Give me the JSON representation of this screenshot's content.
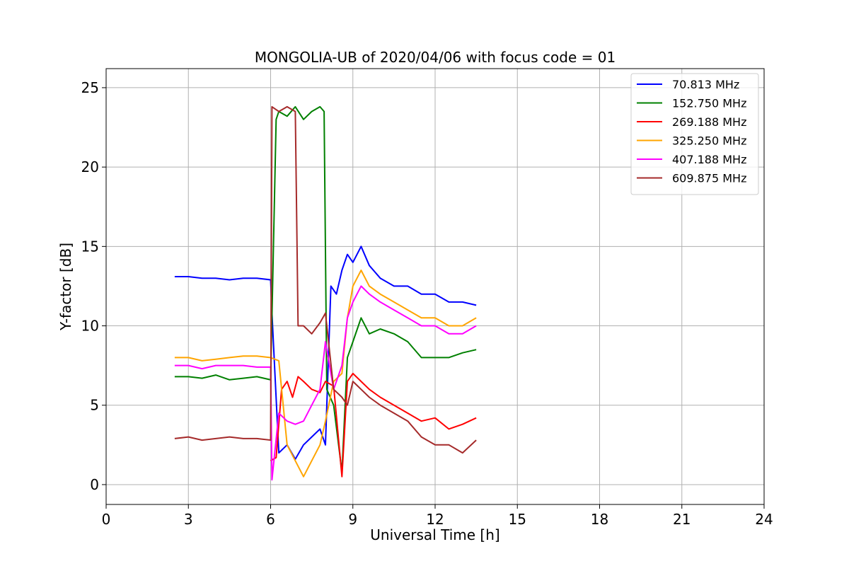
{
  "chart_data": {
    "type": "line",
    "title": "MONGOLIA-UB of 2020/04/06 with focus code = 01",
    "xlabel": "Universal Time [h]",
    "ylabel": "Y-factor [dB]",
    "xlim": [
      0,
      24
    ],
    "ylim": [
      -1.25,
      26.2
    ],
    "xticks": [
      "0",
      "3",
      "6",
      "9",
      "12",
      "15",
      "18",
      "21",
      "24"
    ],
    "yticks": [
      "0",
      "5",
      "10",
      "15",
      "20",
      "25"
    ],
    "grid": true,
    "legend_position": "top-right",
    "series": [
      {
        "name": "70.813 MHz",
        "color": "#0000ff",
        "x": [
          2.5,
          3.0,
          3.5,
          4.0,
          4.5,
          5.0,
          5.5,
          6.0,
          6.05,
          6.3,
          6.6,
          6.9,
          7.2,
          7.5,
          7.8,
          8.0,
          8.2,
          8.4,
          8.6,
          8.8,
          9.0,
          9.3,
          9.6,
          10.0,
          10.5,
          11.0,
          11.5,
          12.0,
          12.5,
          13.0,
          13.5
        ],
        "y": [
          13.1,
          13.1,
          13.0,
          13.0,
          12.9,
          13.0,
          13.0,
          12.9,
          10.8,
          2.0,
          2.5,
          1.6,
          2.5,
          3.0,
          3.5,
          2.5,
          12.5,
          12.0,
          13.5,
          14.5,
          14.0,
          15.0,
          13.8,
          13.0,
          12.5,
          12.5,
          12.0,
          12.0,
          11.5,
          11.5,
          11.3
        ]
      },
      {
        "name": "152.750 MHz",
        "color": "#008000",
        "x": [
          2.5,
          3.0,
          3.5,
          4.0,
          4.5,
          5.0,
          5.5,
          6.0,
          6.2,
          6.3,
          6.6,
          6.9,
          7.2,
          7.5,
          7.8,
          7.95,
          8.05,
          8.3,
          8.6,
          8.8,
          9.0,
          9.3,
          9.6,
          10.0,
          10.5,
          11.0,
          11.5,
          12.0,
          12.5,
          13.0,
          13.5
        ],
        "y": [
          6.8,
          6.8,
          6.7,
          6.9,
          6.6,
          6.7,
          6.8,
          6.6,
          23.0,
          23.5,
          23.2,
          23.8,
          23.0,
          23.5,
          23.8,
          23.5,
          6.0,
          5.0,
          0.8,
          8.0,
          9.0,
          10.5,
          9.5,
          9.8,
          9.5,
          9.0,
          8.0,
          8.0,
          8.0,
          8.3,
          8.5
        ]
      },
      {
        "name": "269.188 MHz",
        "color": "#ff0000",
        "x": [
          6.0,
          6.2,
          6.4,
          6.6,
          6.8,
          7.0,
          7.2,
          7.5,
          7.8,
          8.0,
          8.3,
          8.6,
          8.8,
          9.0,
          9.3,
          9.6,
          10.0,
          10.5,
          11.0,
          11.5,
          12.0,
          12.5,
          13.0,
          13.5
        ],
        "y": [
          1.5,
          1.7,
          6.0,
          6.5,
          5.5,
          6.8,
          6.5,
          6.0,
          5.8,
          6.5,
          6.2,
          0.5,
          6.5,
          7.0,
          6.5,
          6.0,
          5.5,
          5.0,
          4.5,
          4.0,
          4.2,
          3.5,
          3.8,
          4.2
        ]
      },
      {
        "name": "325.250 MHz",
        "color": "#ffa500",
        "x": [
          2.5,
          3.0,
          3.5,
          4.0,
          4.5,
          5.0,
          5.5,
          6.0,
          6.3,
          6.6,
          6.9,
          7.2,
          7.5,
          7.8,
          8.0,
          8.3,
          8.6,
          8.8,
          9.0,
          9.3,
          9.6,
          10.0,
          10.5,
          11.0,
          11.5,
          12.0,
          12.5,
          13.0,
          13.5
        ],
        "y": [
          8.0,
          8.0,
          7.8,
          7.9,
          8.0,
          8.1,
          8.1,
          8.0,
          7.8,
          2.5,
          1.5,
          0.5,
          1.5,
          2.5,
          4.0,
          6.5,
          7.0,
          10.5,
          12.5,
          13.5,
          12.5,
          12.0,
          11.5,
          11.0,
          10.5,
          10.5,
          10.0,
          10.0,
          10.5
        ]
      },
      {
        "name": "407.188 MHz",
        "color": "#ff00ff",
        "x": [
          2.5,
          3.0,
          3.5,
          4.0,
          4.5,
          5.0,
          5.5,
          6.0,
          6.05,
          6.3,
          6.6,
          6.9,
          7.2,
          7.5,
          7.8,
          8.0,
          8.3,
          8.6,
          8.8,
          9.0,
          9.3,
          9.6,
          10.0,
          10.5,
          11.0,
          11.5,
          12.0,
          12.5,
          13.0,
          13.5
        ],
        "y": [
          7.5,
          7.5,
          7.3,
          7.5,
          7.5,
          7.5,
          7.4,
          7.4,
          0.3,
          4.5,
          4.0,
          3.8,
          4.0,
          5.0,
          6.0,
          9.0,
          6.0,
          7.5,
          10.5,
          11.5,
          12.5,
          12.0,
          11.5,
          11.0,
          10.5,
          10.0,
          10.0,
          9.5,
          9.5,
          10.0
        ]
      },
      {
        "name": "609.875 MHz",
        "color": "#a52a2a",
        "x": [
          2.5,
          3.0,
          3.5,
          4.0,
          4.5,
          5.0,
          5.5,
          6.0,
          6.05,
          6.3,
          6.6,
          6.9,
          7.0,
          7.2,
          7.5,
          7.8,
          8.0,
          8.3,
          8.6,
          8.8,
          9.0,
          9.3,
          9.6,
          10.0,
          10.5,
          11.0,
          11.5,
          12.0,
          12.5,
          13.0,
          13.5
        ],
        "y": [
          2.9,
          3.0,
          2.8,
          2.9,
          3.0,
          2.9,
          2.9,
          2.8,
          23.8,
          23.5,
          23.8,
          23.5,
          10.0,
          10.0,
          9.5,
          10.2,
          10.8,
          6.0,
          5.5,
          5.0,
          6.5,
          6.0,
          5.5,
          5.0,
          4.5,
          4.0,
          3.0,
          2.5,
          2.5,
          2.0,
          2.8
        ]
      }
    ]
  }
}
